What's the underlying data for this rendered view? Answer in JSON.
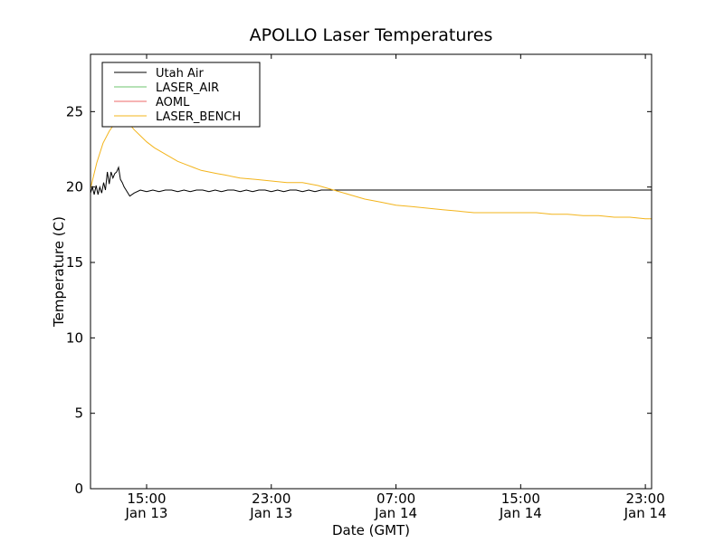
{
  "chart_data": {
    "type": "line",
    "title": "APOLLO Laser Temperatures",
    "xlabel": "Date (GMT)",
    "ylabel": "Temperature (C)",
    "x_unit": "hours",
    "xlim": [
      11.4,
      47.4
    ],
    "ylim": [
      0,
      28.8
    ],
    "yticks": [
      0,
      5,
      10,
      15,
      20,
      25
    ],
    "xticks": [
      {
        "value": 15,
        "time": "15:00",
        "date": "Jan 13"
      },
      {
        "value": 23,
        "time": "23:00",
        "date": "Jan 13"
      },
      {
        "value": 31,
        "time": "07:00",
        "date": "Jan 14"
      },
      {
        "value": 39,
        "time": "15:00",
        "date": "Jan 14"
      },
      {
        "value": 47,
        "time": "23:00",
        "date": "Jan 14"
      }
    ],
    "legend": {
      "position": "top-left"
    },
    "series": [
      {
        "name": "Utah Air",
        "color": "#000000",
        "x": [
          11.4,
          11.52,
          11.64,
          11.76,
          11.88,
          12.0,
          12.12,
          12.24,
          12.36,
          12.48,
          12.6,
          12.72,
          12.84,
          12.96,
          13.08,
          13.2,
          13.32,
          13.44,
          13.56,
          13.68,
          13.8,
          13.92,
          14.2,
          14.6,
          15.0,
          15.4,
          15.8,
          16.2,
          16.6,
          17.0,
          17.4,
          17.8,
          18.2,
          18.6,
          19.0,
          19.4,
          19.8,
          20.2,
          20.6,
          21.0,
          21.4,
          21.8,
          22.2,
          22.6,
          23.0,
          23.4,
          23.8,
          24.2,
          24.6,
          25.0,
          25.4,
          25.8,
          26.2,
          26.6,
          27.0,
          27.4,
          27.8,
          28.2,
          28.6,
          29.0,
          29.4,
          29.8,
          30.2,
          30.6,
          31.0,
          31.4,
          31.8,
          32.2,
          32.6,
          33.0,
          33.4,
          33.8,
          34.2,
          34.6,
          35.0,
          35.4,
          35.8,
          36.2,
          36.6,
          37.0,
          37.4,
          37.8,
          38.2,
          38.6,
          39.0,
          39.4,
          39.8,
          40.2,
          40.6,
          41.0,
          41.4,
          41.8,
          42.2,
          42.6,
          43.0,
          43.4,
          43.8,
          44.2,
          44.6,
          45.0,
          45.4,
          45.8,
          46.2,
          46.6,
          47.0,
          47.4
        ],
        "y": [
          19.6,
          20.0,
          19.5,
          20.1,
          19.5,
          20.0,
          19.6,
          20.3,
          19.8,
          21.0,
          20.2,
          21.0,
          20.6,
          20.9,
          21.0,
          21.3,
          20.5,
          20.3,
          20.0,
          19.8,
          19.6,
          19.4,
          19.6,
          19.8,
          19.7,
          19.8,
          19.7,
          19.8,
          19.8,
          19.7,
          19.8,
          19.7,
          19.8,
          19.8,
          19.7,
          19.8,
          19.7,
          19.8,
          19.8,
          19.7,
          19.8,
          19.7,
          19.8,
          19.8,
          19.7,
          19.8,
          19.7,
          19.8,
          19.8,
          19.7,
          19.8,
          19.7,
          19.8,
          19.8,
          19.8,
          19.8,
          19.8,
          19.8,
          19.8,
          19.8,
          19.8,
          19.8,
          19.8,
          19.8,
          19.8,
          19.8,
          19.8,
          19.8,
          19.8,
          19.8,
          19.8,
          19.8,
          19.8,
          19.8,
          19.8,
          19.8,
          19.8,
          19.8,
          19.8,
          19.8,
          19.8,
          19.8,
          19.8,
          19.8,
          19.8,
          19.8,
          19.8,
          19.8,
          19.8,
          19.8,
          19.8,
          19.8,
          19.8,
          19.8,
          19.8,
          19.8,
          19.8,
          19.8,
          19.8,
          19.8,
          19.8,
          19.8,
          19.8,
          19.8,
          19.8,
          19.8
        ]
      },
      {
        "name": "LASER_AIR",
        "color": "#6cc46c",
        "x": [],
        "y": []
      },
      {
        "name": "AOML",
        "color": "#ee6a6a",
        "x": [],
        "y": []
      },
      {
        "name": "LASER_BENCH",
        "color": "#f3b41b",
        "x": [
          11.4,
          11.8,
          12.2,
          12.6,
          13.0,
          13.4,
          13.8,
          14.2,
          14.6,
          15.0,
          15.5,
          16.0,
          16.5,
          17.0,
          17.5,
          18.0,
          18.5,
          19.0,
          19.5,
          20.0,
          21.0,
          22.0,
          23.0,
          24.0,
          25.0,
          26.0,
          27.0,
          28.0,
          29.0,
          30.0,
          31.0,
          32.0,
          33.0,
          34.0,
          35.0,
          36.0,
          37.0,
          38.0,
          39.0,
          40.0,
          41.0,
          42.0,
          43.0,
          44.0,
          45.0,
          46.0,
          47.0,
          47.4
        ],
        "y": [
          19.9,
          21.6,
          22.9,
          23.7,
          24.3,
          24.5,
          24.3,
          23.8,
          23.4,
          23.0,
          22.6,
          22.3,
          22.0,
          21.7,
          21.5,
          21.3,
          21.1,
          21.0,
          20.9,
          20.8,
          20.6,
          20.5,
          20.4,
          20.3,
          20.3,
          20.1,
          19.8,
          19.5,
          19.2,
          19.0,
          18.8,
          18.7,
          18.6,
          18.5,
          18.4,
          18.3,
          18.3,
          18.3,
          18.3,
          18.3,
          18.2,
          18.2,
          18.1,
          18.1,
          18.0,
          18.0,
          17.9,
          17.9
        ]
      }
    ]
  }
}
